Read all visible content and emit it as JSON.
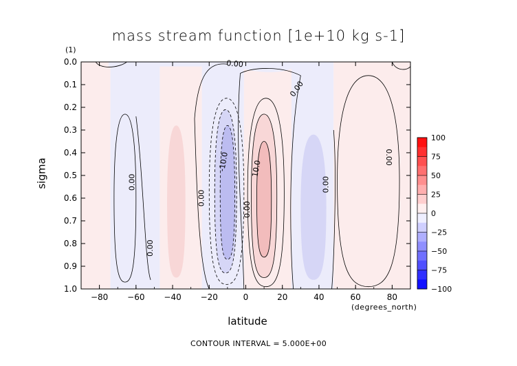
{
  "chart_data": {
    "type": "heatmap",
    "title": "mass stream function [1e+10 kg s-1]",
    "xlabel": "latitude",
    "ylabel": "sigma",
    "y_units_label": "(1)",
    "x_units_label": "(degrees_north)",
    "x_ticks": [
      -80,
      -60,
      -40,
      -20,
      0,
      20,
      40,
      60,
      80
    ],
    "x_tick_labels": [
      "−80",
      "−60",
      "−40",
      "−20",
      "0",
      "20",
      "40",
      "60",
      "80"
    ],
    "y_ticks": [
      0.0,
      0.1,
      0.2,
      0.3,
      0.4,
      0.5,
      0.6,
      0.7,
      0.8,
      0.9,
      1.0
    ],
    "y_tick_labels": [
      "0.0",
      "0.1",
      "0.2",
      "0.3",
      "0.4",
      "0.5",
      "0.6",
      "0.7",
      "0.8",
      "0.9",
      "1.0"
    ],
    "xlim": [
      -90,
      90
    ],
    "ylim": [
      1.0,
      0.0
    ],
    "footer": "CONTOUR INTERVAL = 5.000E+00",
    "contour_interval": 5,
    "contour_labels": [
      {
        "text": "0.00",
        "x": -62,
        "y": 0.53,
        "rotate": -90
      },
      {
        "text": "0.00",
        "x": -52,
        "y": 0.82,
        "rotate": -90
      },
      {
        "text": "0.00",
        "x": -24,
        "y": 0.6,
        "rotate": -90
      },
      {
        "text": "-10.0",
        "x": -12,
        "y": 0.44,
        "rotate": -80
      },
      {
        "text": "0.00",
        "x": 1,
        "y": 0.65,
        "rotate": -90
      },
      {
        "text": "10.0",
        "x": 6,
        "y": 0.47,
        "rotate": -80
      },
      {
        "text": "0.00",
        "x": -6,
        "y": 0.01,
        "rotate": 5
      },
      {
        "text": "0.00",
        "x": 28,
        "y": 0.12,
        "rotate": -55
      },
      {
        "text": "0.00",
        "x": 44,
        "y": 0.54,
        "rotate": -90
      },
      {
        "text": "0.00",
        "x": 78,
        "y": 0.42,
        "rotate": 90
      }
    ],
    "colorbar": {
      "levels": [
        -100,
        -75,
        -50,
        -25,
        0,
        25,
        50,
        75,
        100
      ],
      "labels": [
        "−100",
        "−75",
        "−50",
        "−25",
        "0",
        "25",
        "50",
        "75",
        "100"
      ],
      "negative_color": "#0000ff",
      "positive_color": "#ff0000"
    },
    "cells": [
      {
        "x": [
          -58,
          -52
        ],
        "sign": "pos",
        "value": 2.5
      },
      {
        "x": [
          -72,
          -64
        ],
        "sign": "neg",
        "value": -2.5
      },
      {
        "x": [
          -42,
          -34
        ],
        "sign": "pos",
        "value": 7.5
      },
      {
        "x": [
          -16,
          -4
        ],
        "sign": "neg",
        "value": -15
      },
      {
        "x": [
          4,
          16
        ],
        "sign": "pos",
        "value": 15
      },
      {
        "x": [
          32,
          42
        ],
        "sign": "neg",
        "value": -7.5
      },
      {
        "x": [
          52,
          78
        ],
        "sign": "pos",
        "value": 2.5
      }
    ]
  },
  "colors": {
    "neg_light": "#ececfb",
    "neg_mid": "#d6d6f6",
    "neg_dark": "#bcbcf0",
    "pos_light": "#fcecec",
    "pos_mid": "#f8d7d7",
    "pos_dark": "#f2bcbc"
  }
}
